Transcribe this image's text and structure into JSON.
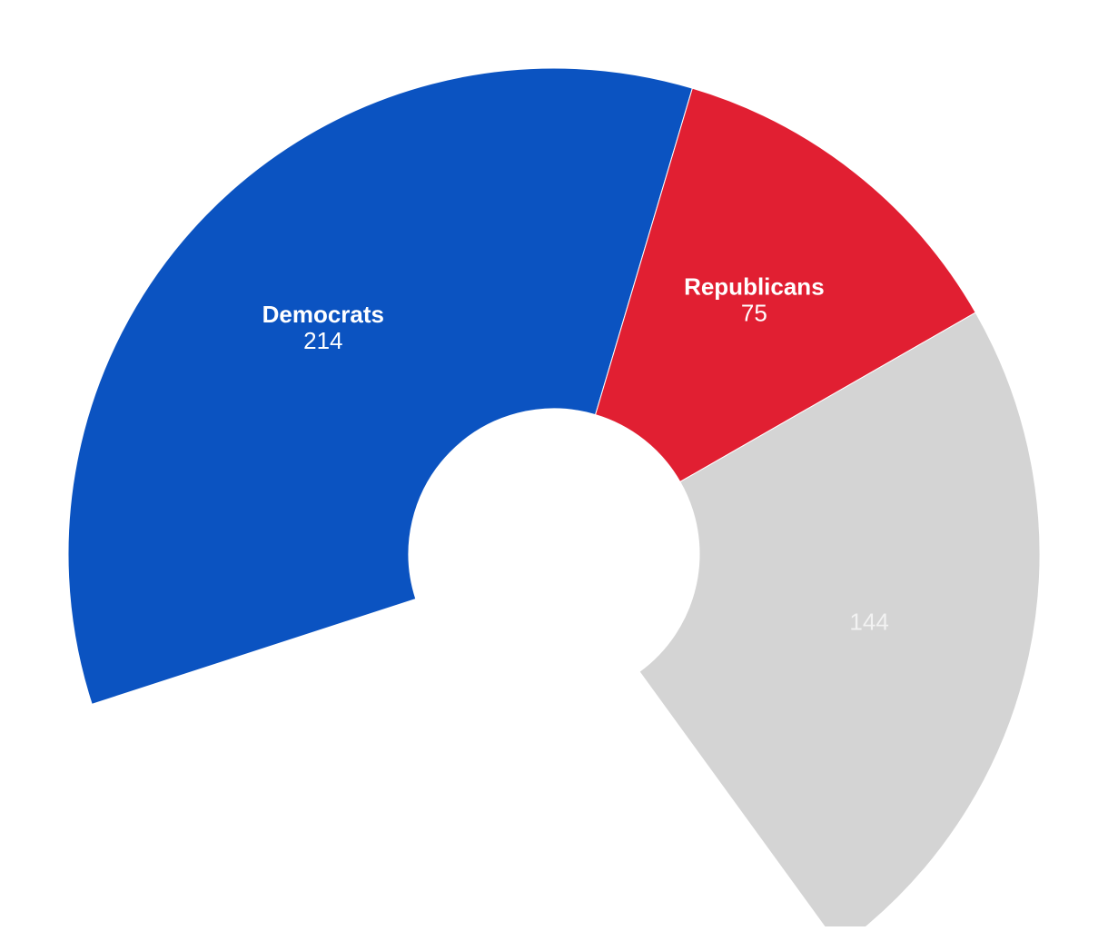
{
  "chart_data": {
    "type": "pie",
    "variant": "half-donut",
    "segments": [
      {
        "name": "Democrats",
        "value": 214,
        "color": "#0b53c1",
        "label_color": "#ffffff"
      },
      {
        "name": "Republicans",
        "value": 75,
        "color": "#e11f32",
        "label_color": "#ffffff"
      },
      {
        "name": "",
        "value": 144,
        "color": "#d4d4d4",
        "label_color": "#f2f2f2"
      }
    ],
    "legend": "none"
  }
}
